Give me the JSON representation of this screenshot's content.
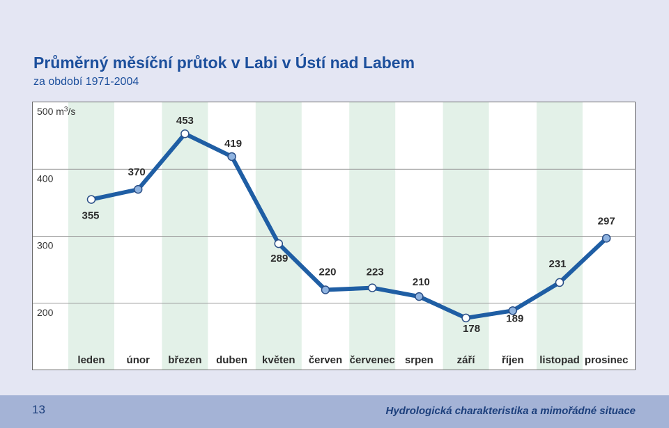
{
  "header": {
    "title": "Průměrný měsíční průtok v Labi v Ústí nad Labem",
    "subtitle": "za období 1971-2004"
  },
  "footer": {
    "page_number": "13",
    "text": "Hydrologická charakteristika a mimořádné situace"
  },
  "colors": {
    "title": "#1c4f9c",
    "line": "#1f5ea4",
    "stripe": "#e3f1e8",
    "marker_filled": "#8fb3e0",
    "marker_open": "#ffffff",
    "footer_band": "#a4b3d6",
    "background": "#e4e6f3"
  },
  "chart_data": {
    "type": "line",
    "title": "Průměrný měsíční průtok v Labi v Ústí nad Labem",
    "subtitle": "za období 1971-2004",
    "ylabel": "m3/s",
    "unit_label": {
      "prefix": "500 m",
      "sup": "3",
      "suffix": "/s"
    },
    "ylim": [
      100,
      500
    ],
    "yticks": [
      500,
      400,
      300,
      200,
      100
    ],
    "grid": true,
    "categories": [
      "leden",
      "únor",
      "březen",
      "duben",
      "květen",
      "červen",
      "červenec",
      "srpen",
      "září",
      "říjen",
      "listopad",
      "prosinec"
    ],
    "values": [
      355,
      370,
      453,
      419,
      289,
      220,
      223,
      210,
      178,
      189,
      231,
      297
    ],
    "data_labels": [
      "355",
      "370",
      "453",
      "419",
      "289",
      "220",
      "223",
      "210",
      "178",
      "189",
      "231",
      "297"
    ],
    "marker_style": [
      "open",
      "filled",
      "open",
      "filled",
      "open",
      "filled",
      "open",
      "filled",
      "open",
      "filled",
      "open",
      "filled"
    ]
  }
}
